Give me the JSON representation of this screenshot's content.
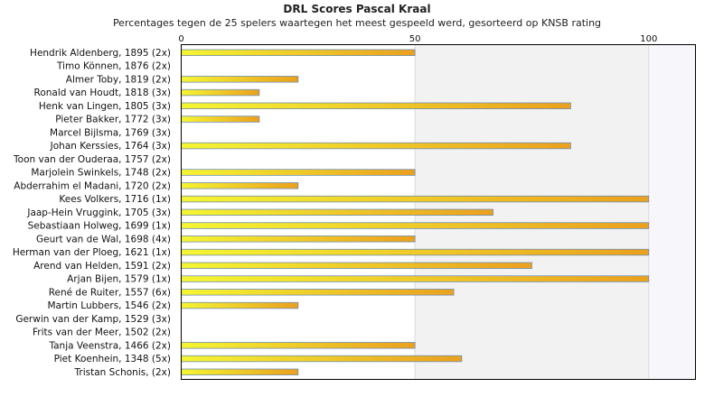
{
  "chart_data": {
    "type": "bar",
    "orientation": "horizontal",
    "title": "DRL Scores Pascal Kraal",
    "subtitle": "Percentages tegen de 25 spelers waartegen het meest gespeeld werd, gesorteerd op KNSB rating",
    "xlim": [
      0,
      110
    ],
    "xticks": [
      0,
      50,
      100
    ],
    "grid": true,
    "categories": [
      "Hendrik Aldenberg, 1895 (2x)",
      "Timo Können, 1876 (2x)",
      "Almer Toby, 1819 (2x)",
      "Ronald van Houdt, 1818 (3x)",
      "Henk van Lingen, 1805 (3x)",
      "Pieter Bakker, 1772 (3x)",
      "Marcel Bijlsma, 1769 (3x)",
      "Johan Kerssies, 1764 (3x)",
      "Toon van der Ouderaa, 1757 (2x)",
      "Marjolein Swinkels, 1748 (2x)",
      "Abderrahim el Madani, 1720 (2x)",
      "Kees Volkers, 1716 (1x)",
      "Jaap-Hein Vruggink, 1705 (3x)",
      "Sebastiaan Holweg, 1699 (1x)",
      "Geurt van de Wal, 1698 (4x)",
      "Herman van der Ploeg, 1621 (1x)",
      "Arend van Helden, 1591 (2x)",
      "Arjan Bijen, 1579 (1x)",
      "René de Ruiter, 1557 (6x)",
      "Martin Lubbers, 1546 (2x)",
      "Gerwin van der Kamp, 1529 (3x)",
      "Frits van der Meer, 1502 (2x)",
      "Tanja Veenstra, 1466 (2x)",
      "Piet Koenhein, 1348 (5x)",
      "Tristan Schonis,  (2x)"
    ],
    "values": [
      50,
      0,
      25,
      16.7,
      83.3,
      16.7,
      0,
      83.3,
      0,
      50,
      25,
      100,
      66.7,
      100,
      50,
      100,
      75,
      100,
      58.3,
      25,
      0,
      0,
      50,
      60,
      25
    ],
    "colors": {
      "bar_left": "#f5f532",
      "bar_right": "#eba01e",
      "bar_border": "#6f8fb0",
      "band_light": "#ffffff",
      "band_shade": "#f2f2f2",
      "band_far": "#f7f7fb",
      "axis": "#000000"
    }
  }
}
